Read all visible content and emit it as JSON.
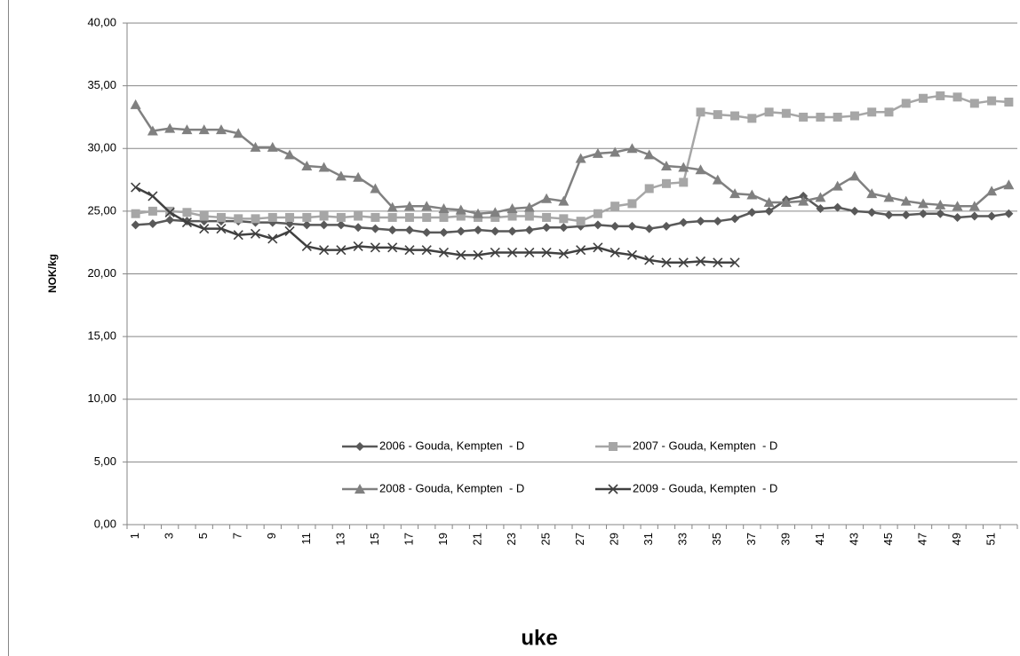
{
  "chart_data": {
    "type": "line",
    "x_label": "uke",
    "y_label": "NOK/kg",
    "categories": [
      "1",
      null,
      "3",
      null,
      "5",
      null,
      "7",
      null,
      "9",
      null,
      "11",
      null,
      "13",
      null,
      "15",
      null,
      "17",
      null,
      "19",
      null,
      "21",
      null,
      "23",
      null,
      "25",
      null,
      "27",
      null,
      "29",
      null,
      "31",
      null,
      "33",
      null,
      "35",
      null,
      "37",
      null,
      "39",
      null,
      "41",
      null,
      "43",
      null,
      "45",
      null,
      "47",
      null,
      "49",
      null,
      "51",
      null
    ],
    "ylim": [
      0,
      40
    ],
    "yticks": [
      {
        "value": 0,
        "label": "0,00"
      },
      {
        "value": 5,
        "label": "5,00"
      },
      {
        "value": 10,
        "label": "10,00"
      },
      {
        "value": 15,
        "label": "15,00"
      },
      {
        "value": 20,
        "label": "20,00"
      },
      {
        "value": 25,
        "label": "25,00"
      },
      {
        "value": 30,
        "label": "30,00"
      },
      {
        "value": 35,
        "label": "35,00"
      },
      {
        "value": 40,
        "label": "40,00"
      }
    ],
    "grid": true,
    "series": [
      {
        "name": "2006 - Gouda, Kempten  - D",
        "color": "#595959",
        "marker": "diamond",
        "values": [
          23.9,
          24.0,
          24.3,
          24.2,
          24.2,
          24.2,
          24.2,
          24.1,
          24.1,
          24.0,
          23.9,
          23.9,
          23.9,
          23.7,
          23.6,
          23.5,
          23.5,
          23.3,
          23.3,
          23.4,
          23.5,
          23.4,
          23.4,
          23.5,
          23.7,
          23.7,
          23.8,
          23.9,
          23.8,
          23.8,
          23.6,
          23.8,
          24.1,
          24.2,
          24.2,
          24.4,
          24.9,
          25.0,
          25.9,
          26.2,
          25.2,
          25.3,
          25.0,
          24.9,
          24.7,
          24.7,
          24.8,
          24.8,
          24.5,
          24.6,
          24.6,
          24.8
        ]
      },
      {
        "name": "2007 - Gouda, Kempten  - D",
        "color": "#a6a6a6",
        "marker": "square",
        "values": [
          24.8,
          25.0,
          25.0,
          24.9,
          24.6,
          24.5,
          24.4,
          24.4,
          24.5,
          24.5,
          24.5,
          24.6,
          24.5,
          24.6,
          24.5,
          24.5,
          24.5,
          24.5,
          24.5,
          24.6,
          24.5,
          24.5,
          24.6,
          24.6,
          24.5,
          24.4,
          24.2,
          24.8,
          25.4,
          25.6,
          26.8,
          27.2,
          27.3,
          32.9,
          32.7,
          32.6,
          32.4,
          32.9,
          32.8,
          32.5,
          32.5,
          32.5,
          32.6,
          32.9,
          32.9,
          33.6,
          34.0,
          34.2,
          34.1,
          33.6,
          33.8,
          33.7
        ]
      },
      {
        "name": "2008 - Gouda, Kempten  - D",
        "color": "#808080",
        "marker": "triangle",
        "values": [
          33.5,
          31.4,
          31.6,
          31.5,
          31.5,
          31.5,
          31.2,
          30.1,
          30.1,
          29.5,
          28.6,
          28.5,
          27.8,
          27.7,
          26.8,
          25.3,
          25.4,
          25.4,
          25.2,
          25.1,
          24.8,
          24.9,
          25.2,
          25.3,
          26.0,
          25.8,
          29.2,
          29.6,
          29.7,
          30.0,
          29.5,
          28.6,
          28.5,
          28.3,
          27.5,
          26.4,
          26.3,
          25.7,
          25.7,
          25.8,
          26.1,
          27.0,
          27.8,
          26.4,
          26.1,
          25.8,
          25.6,
          25.5,
          25.4,
          25.4,
          26.6,
          27.1
        ]
      },
      {
        "name": "2009 - Gouda, Kempten  - D",
        "color": "#404040",
        "marker": "x",
        "values": [
          26.9,
          26.2,
          24.9,
          24.1,
          23.6,
          23.6,
          23.1,
          23.2,
          22.8,
          23.4,
          22.2,
          21.9,
          21.9,
          22.2,
          22.1,
          22.1,
          21.9,
          21.9,
          21.7,
          21.5,
          21.5,
          21.7,
          21.7,
          21.7,
          21.7,
          21.6,
          21.9,
          22.1,
          21.7,
          21.5,
          21.1,
          20.9,
          20.9,
          21.0,
          20.9,
          20.9,
          null,
          null,
          null,
          null,
          null,
          null,
          null,
          null,
          null,
          null,
          null,
          null,
          null,
          null,
          null,
          null
        ]
      }
    ]
  }
}
